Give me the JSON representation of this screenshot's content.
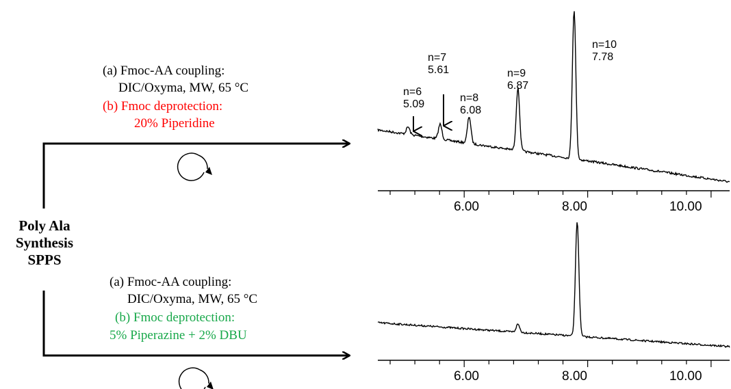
{
  "center": {
    "lines": [
      "Poly Ala",
      "Synthesis",
      "SPPS"
    ]
  },
  "top_route": {
    "step_a_label": "(a)   Fmoc-AA coupling:",
    "step_a_detail": "DIC/Oxyma, MW, 65 °C",
    "step_b_label": "(b)   Fmoc deprotection:",
    "step_b_detail": "20% Piperidine",
    "step_b_color": "#ff0000"
  },
  "bottom_route": {
    "step_a_label": "(a)   Fmoc-AA coupling:",
    "step_a_detail": "DIC/Oxyma, MW, 65 °C",
    "step_b_label": "(b)   Fmoc deprotection:",
    "step_b_detail": "5% Piperazine + 2% DBU",
    "step_b_color": "#18a84a"
  },
  "chart_data": [
    {
      "type": "line",
      "x_ticks": [
        "6.00",
        "8.00",
        "10.00"
      ],
      "xlim": [
        4.6,
        10.3
      ],
      "peaks": [
        {
          "n": "n=6",
          "rt": "5.09",
          "x": 5.09,
          "height": 0.05
        },
        {
          "n": "n=7",
          "rt": "5.61",
          "x": 5.61,
          "height": 0.1
        },
        {
          "n": "n=8",
          "rt": "6.08",
          "x": 6.08,
          "height": 0.18
        },
        {
          "n": "n=9",
          "rt": "6.87",
          "x": 6.87,
          "height": 0.42
        },
        {
          "n": "n=10",
          "rt": "7.78",
          "x": 7.78,
          "height": 1.0
        }
      ]
    },
    {
      "type": "line",
      "x_ticks": [
        "6.00",
        "8.00",
        "10.00"
      ],
      "xlim": [
        4.6,
        10.3
      ],
      "peaks": [
        {
          "x": 6.87,
          "height": 0.07
        },
        {
          "x": 7.83,
          "height": 1.0
        }
      ]
    }
  ]
}
